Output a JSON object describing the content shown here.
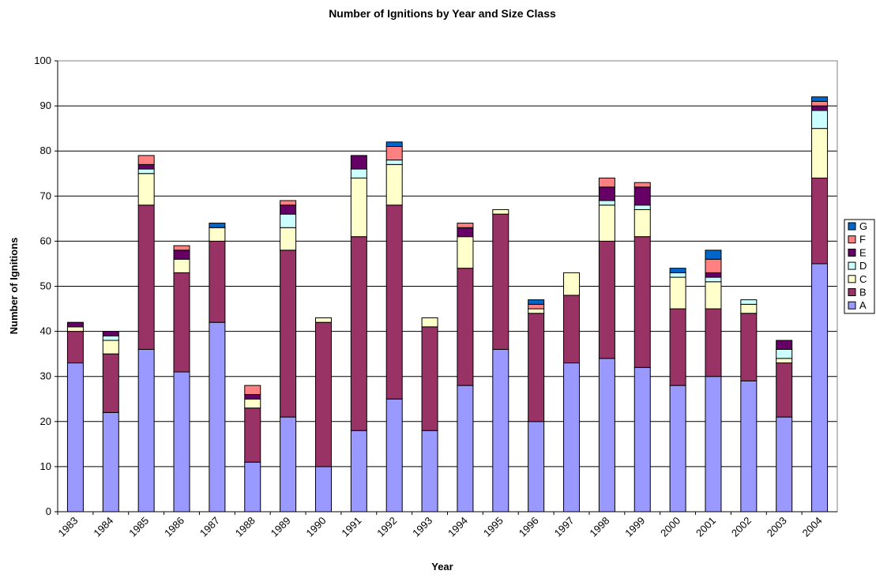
{
  "chart_data": {
    "type": "bar",
    "stacked": true,
    "title": "Number of Ignitions by Year and Size Class",
    "x_label": "Year",
    "y_label": "Number of Ignitions",
    "categories": [
      "1983",
      "1984",
      "1985",
      "1986",
      "1987",
      "1988",
      "1989",
      "1990",
      "1991",
      "1992",
      "1993",
      "1994",
      "1995",
      "1996",
      "1997",
      "1998",
      "1999",
      "2000",
      "2001",
      "2002",
      "2003",
      "2004"
    ],
    "series": [
      {
        "name": "A",
        "color": "#9999ff",
        "values": [
          33,
          22,
          36,
          31,
          42,
          11,
          21,
          10,
          18,
          25,
          18,
          28,
          36,
          20,
          33,
          34,
          32,
          28,
          30,
          29,
          21,
          55
        ]
      },
      {
        "name": "B",
        "color": "#993366",
        "values": [
          7,
          13,
          32,
          22,
          18,
          12,
          37,
          32,
          43,
          43,
          23,
          26,
          30,
          24,
          15,
          26,
          29,
          17,
          15,
          15,
          12,
          19
        ]
      },
      {
        "name": "C",
        "color": "#ffffcc",
        "values": [
          1,
          3,
          7,
          3,
          3,
          2,
          5,
          1,
          13,
          9,
          2,
          7,
          1,
          1,
          5,
          8,
          6,
          7,
          6,
          2,
          1,
          11
        ]
      },
      {
        "name": "D",
        "color": "#ccffff",
        "values": [
          0,
          1,
          1,
          0,
          0,
          0,
          3,
          0,
          2,
          1,
          0,
          0,
          0,
          0,
          0,
          1,
          1,
          1,
          1,
          1,
          2,
          4
        ]
      },
      {
        "name": "E",
        "color": "#660066",
        "values": [
          1,
          1,
          1,
          2,
          0,
          1,
          2,
          0,
          3,
          0,
          0,
          2,
          0,
          0,
          0,
          3,
          4,
          0,
          1,
          0,
          2,
          1
        ]
      },
      {
        "name": "F",
        "color": "#ff8080",
        "values": [
          0,
          0,
          2,
          1,
          0,
          2,
          1,
          0,
          0,
          3,
          0,
          1,
          0,
          1,
          0,
          2,
          1,
          0,
          3,
          0,
          0,
          1
        ]
      },
      {
        "name": "G",
        "color": "#0066cc",
        "values": [
          0,
          0,
          0,
          0,
          1,
          0,
          0,
          0,
          0,
          1,
          0,
          0,
          0,
          1,
          0,
          0,
          0,
          1,
          2,
          0,
          0,
          1
        ]
      }
    ],
    "ylim": [
      0,
      100
    ],
    "yticks": [
      0,
      10,
      20,
      30,
      40,
      50,
      60,
      70,
      80,
      90,
      100
    ],
    "grid": true,
    "legend": "right"
  }
}
